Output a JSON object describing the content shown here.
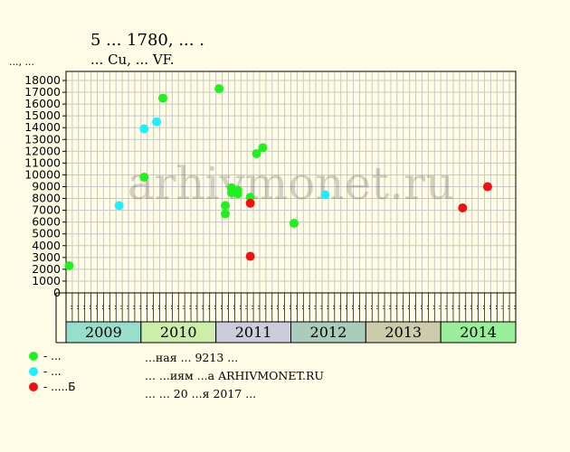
{
  "header": {
    "title": "5 ... 1780, ... .",
    "subtitle": "... Cu, ... VF."
  },
  "yunit": "..., ...",
  "legend": [
    {
      "label": "- ...",
      "color": "#22ee22"
    },
    {
      "label": "- ...",
      "color": "#22eeff"
    },
    {
      "label": "- .....Б",
      "color": "#ee1111"
    }
  ],
  "watermark": "arhivmonet.ru",
  "footer": {
    "line1": "...ная ... 9213 ...",
    "line2": "... ...иям ...а ARHIVMONET.RU",
    "line3": "... ... 20 ...я 2017 ..."
  },
  "chart_data": {
    "type": "scatter",
    "ylim": [
      0,
      18000
    ],
    "yticks": [
      0,
      1000,
      2000,
      3000,
      4000,
      5000,
      6000,
      7000,
      8000,
      9000,
      10000,
      11000,
      12000,
      13000,
      14000,
      15000,
      16000,
      17000,
      18000
    ],
    "years": [
      "2009",
      "2010",
      "2011",
      "2012",
      "2013",
      "2014"
    ],
    "year_colors": [
      "#99ddcc",
      "#cceeaa",
      "#ccccdd",
      "#aaccbb",
      "#ccccaa",
      "#99ee99"
    ],
    "month_labels": [
      "..",
      "..",
      "..",
      "..",
      "..",
      "..",
      "..",
      "..",
      "..",
      "..",
      "..",
      ".."
    ],
    "grid": true,
    "series": [
      {
        "color": "#22ee22",
        "points": [
          {
            "x": "2009-01",
            "y": 2300
          },
          {
            "x": "2010-01",
            "y": 9800
          },
          {
            "x": "2010-04",
            "y": 16500
          },
          {
            "x": "2011-01",
            "y": 17300
          },
          {
            "x": "2011-02",
            "y": 6700
          },
          {
            "x": "2011-02",
            "y": 7400
          },
          {
            "x": "2011-03",
            "y": 8900
          },
          {
            "x": "2011-03",
            "y": 8500
          },
          {
            "x": "2011-04",
            "y": 8700
          },
          {
            "x": "2011-04",
            "y": 8400
          },
          {
            "x": "2011-06",
            "y": 8100
          },
          {
            "x": "2011-07",
            "y": 11800
          },
          {
            "x": "2011-08",
            "y": 12300
          },
          {
            "x": "2012-01",
            "y": 5900
          }
        ]
      },
      {
        "color": "#22eeff",
        "points": [
          {
            "x": "2009-09",
            "y": 7400
          },
          {
            "x": "2010-01",
            "y": 13900
          },
          {
            "x": "2010-03",
            "y": 14500
          },
          {
            "x": "2012-06",
            "y": 8300
          }
        ]
      },
      {
        "color": "#ee1111",
        "points": [
          {
            "x": "2011-06",
            "y": 3100
          },
          {
            "x": "2011-06",
            "y": 7600
          },
          {
            "x": "2014-04",
            "y": 7200
          },
          {
            "x": "2014-08",
            "y": 9000
          }
        ]
      }
    ]
  }
}
